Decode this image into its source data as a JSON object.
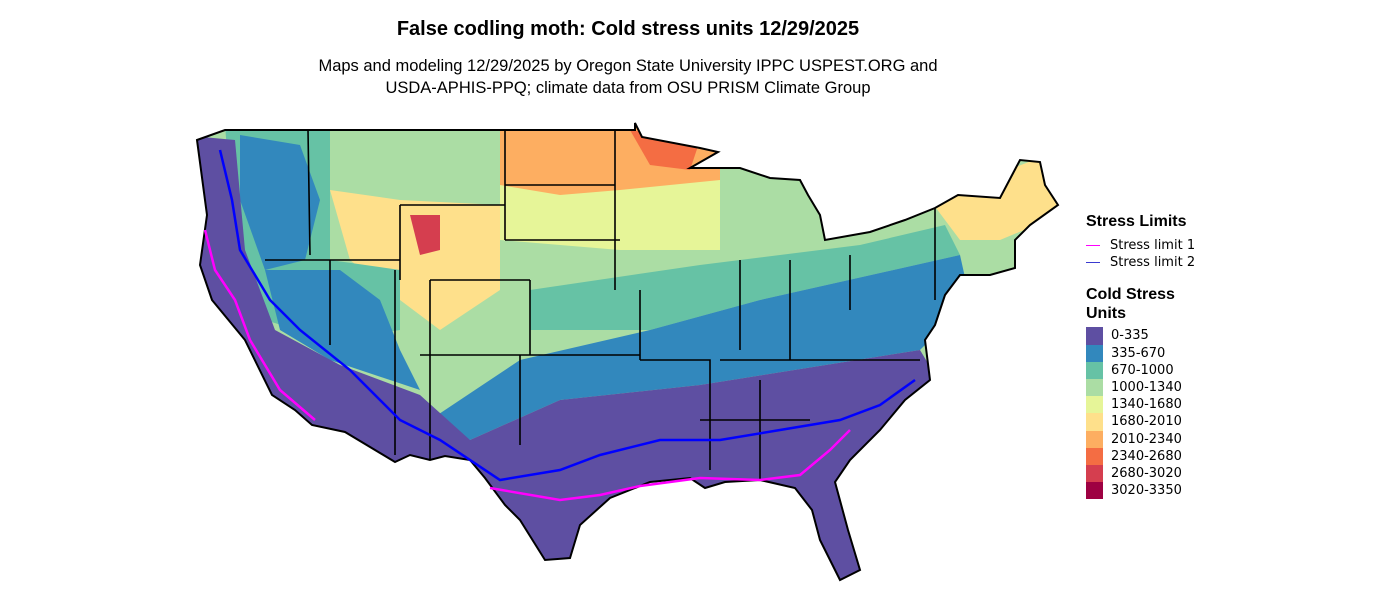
{
  "title": "False codling moth: Cold stress units 12/29/2025",
  "subtitle_line1": "Maps and modeling 12/29/2025 by Oregon State University IPPC USPEST.ORG and",
  "subtitle_line2": "USDA-APHIS-PPQ; climate data from OSU PRISM Climate Group",
  "legend": {
    "limits_title": "Stress Limits",
    "limits": [
      {
        "label": "Stress limit 1",
        "color": "#FF00FF"
      },
      {
        "label": "Stress limit 2",
        "color": "#0000FF"
      }
    ],
    "units_title_line1": "Cold Stress",
    "units_title_line2": "Units",
    "bins": [
      {
        "label": "0-335",
        "color": "#5E4FA2"
      },
      {
        "label": "335-670",
        "color": "#3288BD"
      },
      {
        "label": "670-1000",
        "color": "#66C2A5"
      },
      {
        "label": "1000-1340",
        "color": "#ABDDA4"
      },
      {
        "label": "1340-1680",
        "color": "#E6F598"
      },
      {
        "label": "1680-2010",
        "color": "#FEE08B"
      },
      {
        "label": "2010-2340",
        "color": "#FDAE61"
      },
      {
        "label": "2340-2680",
        "color": "#F46D43"
      },
      {
        "label": "2680-3020",
        "color": "#D53E4F"
      },
      {
        "label": "3020-3350",
        "color": "#9E0142"
      }
    ]
  }
}
